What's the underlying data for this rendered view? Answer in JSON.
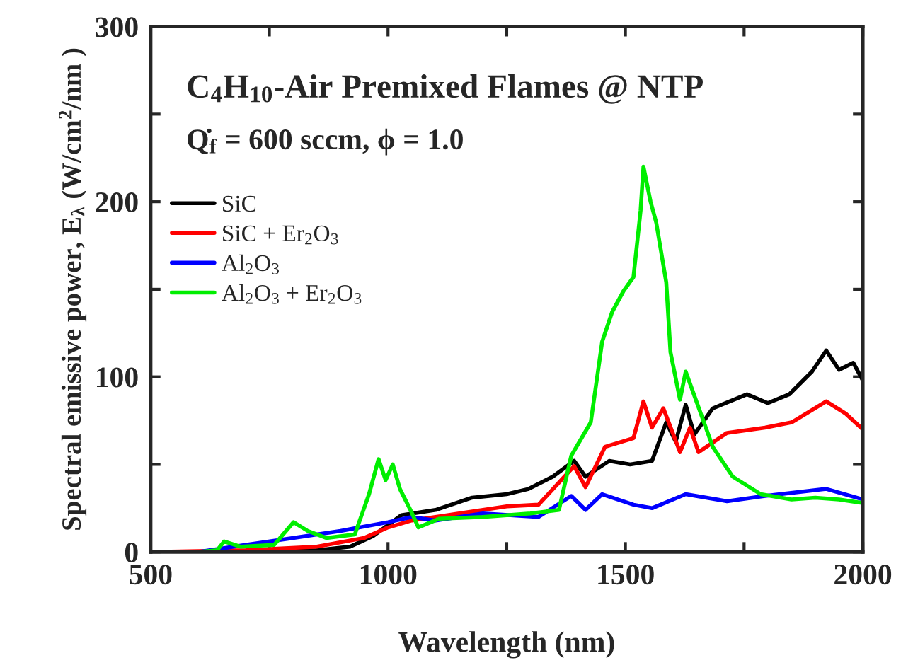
{
  "chart_data": {
    "type": "line",
    "xlabel": "Wavelength (nm)",
    "ylabel": "Spectral emissive power, E$_{λ}$ (W/cm$^{2}$/nm )",
    "annotations": [
      "C$_{4}$H$_{10}$-Air Premixed Flames @ NTP",
      "Q̇$_{f}$ = 600 sccm, ϕ = 1.0"
    ],
    "xlim": [
      500,
      2000
    ],
    "xticks": [
      500,
      {
        "value": 750,
        "label": null
      },
      1000,
      {
        "value": 1250,
        "label": null
      },
      1500,
      {
        "value": 1750,
        "label": null
      },
      2000
    ],
    "ylim": [
      0,
      300
    ],
    "yticks": [
      0,
      {
        "value": 50,
        "label": null
      },
      100,
      {
        "value": 150,
        "label": null
      },
      200,
      {
        "value": 250,
        "label": null
      },
      300
    ],
    "grid": false,
    "legend": "top left",
    "line_style": "solid",
    "marker": "none",
    "series": [
      {
        "name": "SiC",
        "color": "#000000",
        "x": [
          500,
          700,
          850,
          920,
          968,
          1028,
          1100,
          1177,
          1250,
          1296,
          1347,
          1392,
          1416,
          1466,
          1510,
          1556,
          1586,
          1606,
          1627,
          1645,
          1684,
          1756,
          1800,
          1845,
          1893,
          1923,
          1950,
          1980,
          2000
        ],
        "values": [
          0,
          0,
          1,
          3,
          9,
          21,
          24,
          31,
          33,
          36,
          43,
          52,
          43,
          52,
          50,
          52,
          74,
          63,
          84,
          67,
          82,
          90,
          85,
          90,
          103,
          115,
          104,
          108,
          98
        ]
      },
      {
        "name": "SiC + Er$_{2}$O$_{3}$",
        "color": "#ff0000",
        "x": [
          500,
          700,
          850,
          950,
          1000,
          1050,
          1150,
          1250,
          1317,
          1392,
          1416,
          1457,
          1517,
          1538,
          1556,
          1580,
          1615,
          1636,
          1654,
          1714,
          1794,
          1850,
          1923,
          1964,
          2000
        ],
        "values": [
          0,
          1,
          3,
          8,
          14,
          18,
          22,
          26,
          27,
          49,
          37,
          60,
          65,
          86,
          71,
          82,
          57,
          71,
          57,
          68,
          71,
          74,
          86,
          79,
          70
        ]
      },
      {
        "name": "Al$_{2}$O$_{3}$",
        "color": "#0000ff",
        "x": [
          500,
          600,
          700,
          800,
          900,
          1000,
          1050,
          1100,
          1200,
          1317,
          1386,
          1416,
          1451,
          1517,
          1556,
          1627,
          1714,
          1794,
          1923,
          2000
        ],
        "values": [
          0,
          0,
          4,
          8,
          12,
          17,
          20,
          18,
          22,
          20,
          32,
          24,
          33,
          27,
          25,
          33,
          29,
          32,
          36,
          30
        ]
      },
      {
        "name": "Al$_{2}$O$_{3}$ + Er$_{2}$O$_{3}$",
        "color": "#00ee00",
        "x": [
          500,
          600,
          640,
          655,
          690,
          760,
          801,
          831,
          870,
          930,
          960,
          980,
          995,
          1010,
          1025,
          1049,
          1064,
          1108,
          1200,
          1300,
          1360,
          1386,
          1427,
          1451,
          1472,
          1496,
          1517,
          1532,
          1538,
          1553,
          1565,
          1586,
          1595,
          1615,
          1627,
          1684,
          1726,
          1785,
          1850,
          1900,
          1950,
          2000
        ],
        "values": [
          0,
          0,
          1,
          6,
          3,
          4,
          17,
          12,
          8,
          10,
          33,
          53,
          41,
          50,
          36,
          23,
          14,
          19,
          20,
          22,
          24,
          55,
          74,
          120,
          137,
          149,
          157,
          195,
          220,
          200,
          188,
          154,
          114,
          87,
          103,
          60,
          43,
          33,
          30,
          31,
          30,
          28
        ]
      }
    ]
  }
}
